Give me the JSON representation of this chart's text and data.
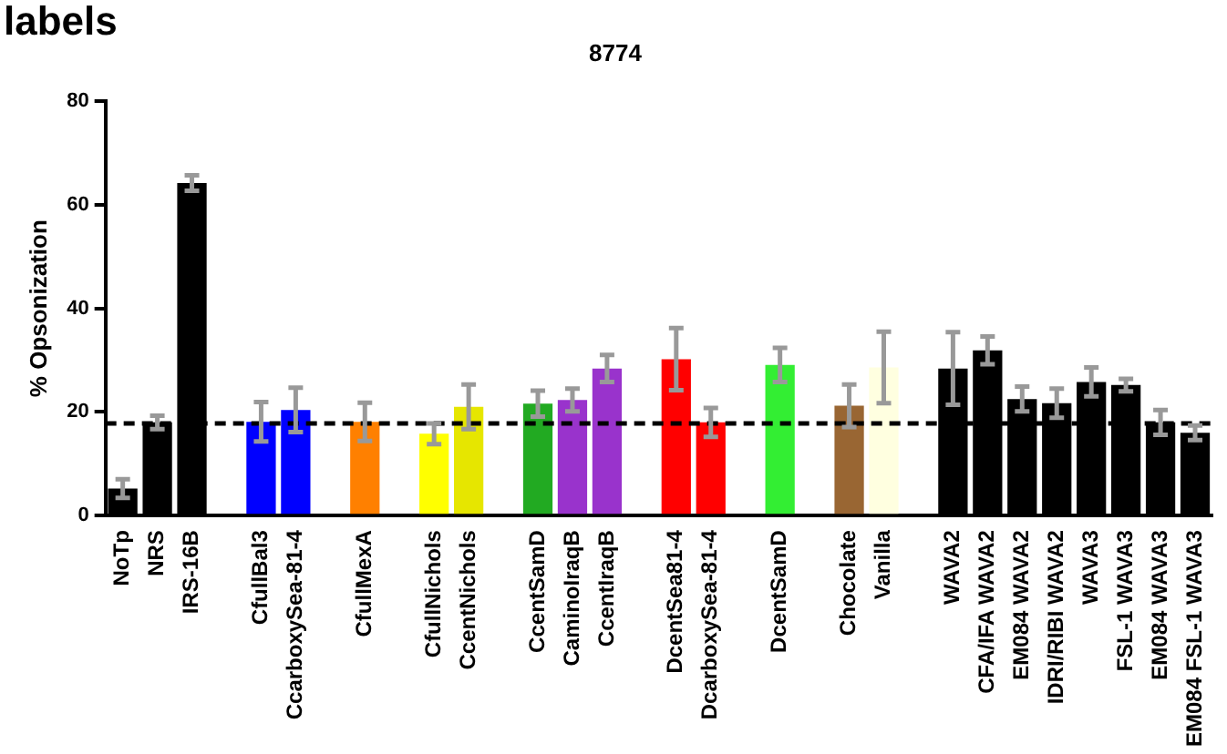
{
  "chart_data": {
    "type": "bar",
    "title": "8774",
    "ylabel": "% Opsonization",
    "annotations": [
      "labels"
    ],
    "categories": [
      "NoTp",
      "NRS",
      "IRS-16B",
      null,
      "CfullBal3",
      "CcarboxySea-81-4",
      null,
      "CfullMexA",
      null,
      "CfullNichols",
      "CcentNichols",
      null,
      "CcentSamD",
      "CaminoIraqB",
      "CcentIraqB",
      null,
      "DcentSea81-4",
      "DcarboxySea-81-4",
      null,
      "DcentSamD",
      null,
      "Chocolate",
      "Vanilla",
      null,
      "WAVA2",
      "CFA/IFA WAVA2",
      "EM084 WAVA2",
      "IDRI/RIBI WAVA2",
      "WAVA3",
      "FSL-1 WAVA3",
      "EM084 WAVA3",
      "EM084 FSL-1 WAVA3"
    ],
    "values": [
      5.2,
      18,
      64.2,
      null,
      18.1,
      20.4,
      null,
      18.1,
      null,
      15.8,
      21,
      null,
      21.6,
      22.3,
      28.4,
      null,
      30.2,
      18,
      null,
      29.1,
      null,
      21.2,
      28.6,
      null,
      28.4,
      31.9,
      22.5,
      21.7,
      25.8,
      25.2,
      18,
      16
    ],
    "errors": [
      1.8,
      1.3,
      1.5,
      null,
      3.8,
      4.3,
      null,
      3.7,
      null,
      2,
      4.3,
      null,
      2.5,
      2.2,
      2.6,
      null,
      6,
      2.8,
      null,
      3.3,
      null,
      4.1,
      6.9,
      null,
      7,
      2.7,
      2.4,
      2.8,
      2.8,
      1.2,
      2.4,
      1.4
    ],
    "colors": [
      "#000000",
      "#000000",
      "#000000",
      "#000000",
      "#0000ff",
      "#0000ff",
      "#000000",
      "#ff8000",
      "#000000",
      "#ffff00",
      "#e6e600",
      "#000000",
      "#22aa22",
      "#9933cc",
      "#9933cc",
      "#000000",
      "#ff0000",
      "#ff0000",
      "#000000",
      "#33ee33",
      "#000000",
      "#996633",
      "#ffffe0",
      "#000000",
      "#000000",
      "#000000",
      "#000000",
      "#000000",
      "#000000",
      "#000000",
      "#000000",
      "#000000"
    ],
    "ylim": [
      0,
      80
    ],
    "yticks": [
      0,
      20,
      40,
      60,
      80
    ],
    "grid": false,
    "legend": false,
    "ref_lines": [
      {
        "axis": "y",
        "value": 17.8,
        "color": "#000000",
        "line_style": "dashed"
      }
    ]
  }
}
